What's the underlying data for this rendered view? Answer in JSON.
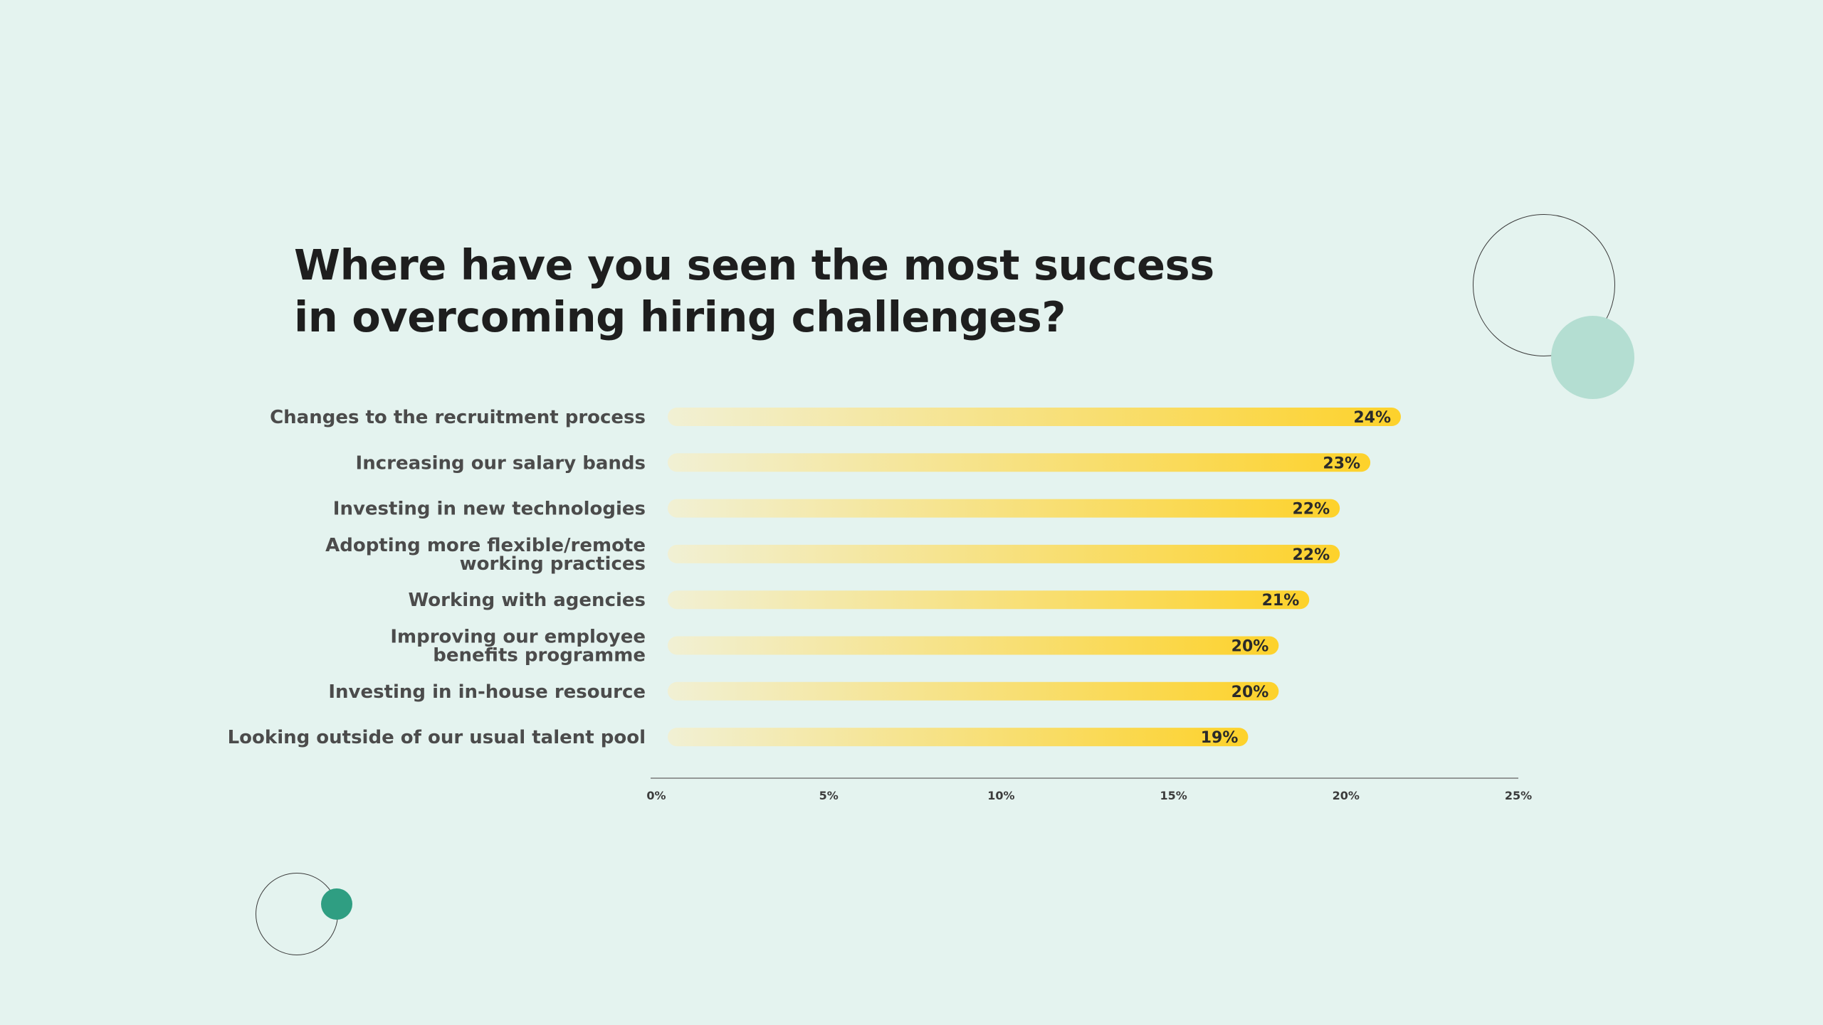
{
  "chart_data": {
    "type": "bar",
    "orientation": "horizontal",
    "title": "Where have you seen the most success in overcoming hiring challenges?",
    "categories": [
      [
        "Changes to the recruitment process"
      ],
      [
        "Increasing our salary bands"
      ],
      [
        "Investing in new technologies"
      ],
      [
        "Adopting more flexible/remote",
        "working practices"
      ],
      [
        "Working with agencies"
      ],
      [
        "Improving our employee",
        "benefits programme"
      ],
      [
        "Investing in in-house resource"
      ],
      [
        "Looking outside of our usual talent pool"
      ]
    ],
    "values": [
      24,
      23,
      22,
      22,
      21,
      20,
      20,
      19
    ],
    "value_labels": [
      "24%",
      "23%",
      "22%",
      "22%",
      "21%",
      "20%",
      "20%",
      "19%"
    ],
    "xlim": [
      0,
      25
    ],
    "x_ticks": [
      0,
      5,
      10,
      15,
      20,
      25
    ],
    "x_tick_labels": [
      "0%",
      "5%",
      "10%",
      "15%",
      "20%",
      "25%"
    ],
    "xlabel": "",
    "ylabel": "",
    "grid": false,
    "legend": "none",
    "colors": {
      "bar_start": "#f1f0d4",
      "bar_end": "#fdd22b",
      "background": "#e4f3ef",
      "axis": "#7a7a7a",
      "accent_teal": "#2f9e82",
      "accent_teal_light": "#b4ded2"
    }
  }
}
